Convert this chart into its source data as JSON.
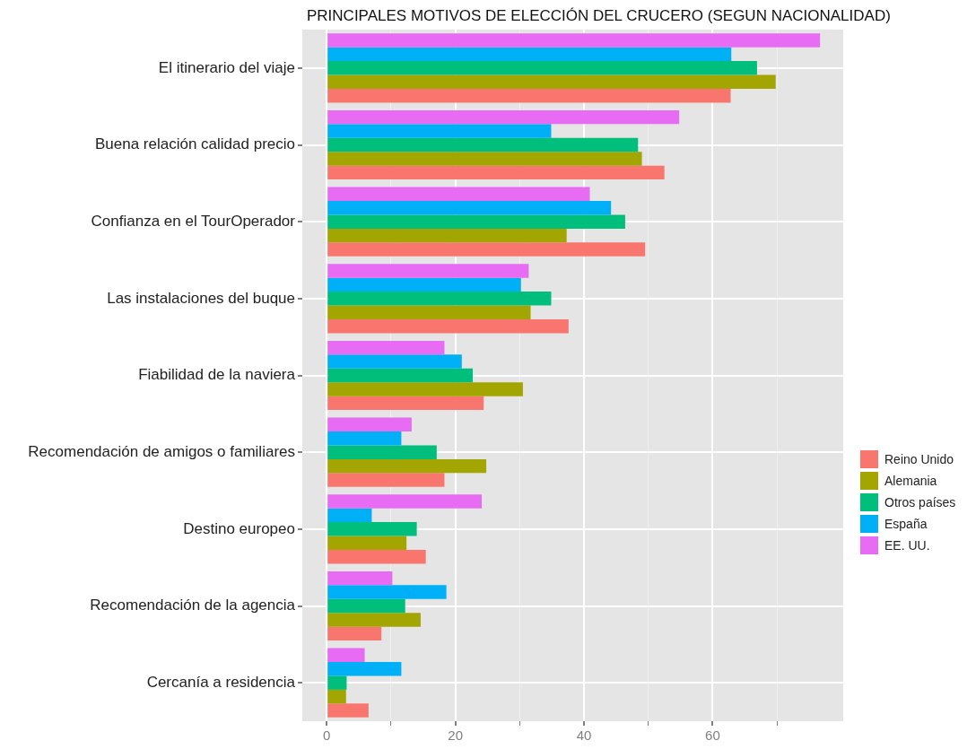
{
  "chart_data": {
    "type": "bar",
    "orientation": "horizontal",
    "title": "PRINCIPALES MOTIVOS DE ELECCIÓN DEL CRUCERO (SEGUN NACIONALIDAD)",
    "categories": [
      "El itinerario del viaje",
      "Buena relación calidad precio",
      "Confianza en el TourOperador",
      "Las instalaciones del buque",
      "Fiabilidad de la naviera",
      "Recomendación de amigos o familiares",
      "Destino europeo",
      "Recomendación de la agencia",
      "Cercanía a residencia"
    ],
    "series": [
      {
        "name": "Reino Unido",
        "color": "#f8766d",
        "values": [
          62.8,
          52.5,
          49.5,
          37.6,
          24.4,
          18.3,
          15.4,
          8.5,
          6.5
        ]
      },
      {
        "name": "Alemania",
        "color": "#a3a500",
        "values": [
          69.8,
          49.0,
          37.3,
          31.7,
          30.5,
          24.8,
          12.4,
          14.6,
          3.0
        ]
      },
      {
        "name": "Otros países",
        "color": "#00bf7d",
        "values": [
          66.9,
          48.4,
          46.4,
          34.9,
          22.7,
          17.1,
          14.0,
          12.2,
          3.1
        ]
      },
      {
        "name": "España",
        "color": "#00b0f6",
        "values": [
          62.9,
          34.9,
          44.2,
          30.2,
          21.0,
          11.6,
          7.0,
          18.6,
          11.6
        ]
      },
      {
        "name": "EE. UU.",
        "color": "#e76bf3",
        "values": [
          76.7,
          54.8,
          40.9,
          31.4,
          18.3,
          13.2,
          24.1,
          10.2,
          5.9
        ]
      }
    ],
    "xlim": [
      -3.8,
      80.3
    ],
    "xticks": [
      0,
      {
        "value": 10,
        "label": null
      },
      20,
      {
        "value": 30,
        "label": null
      },
      40,
      {
        "value": 50,
        "label": null
      },
      60,
      {
        "value": 70,
        "label": null
      }
    ],
    "grid": true,
    "legend": "right"
  }
}
